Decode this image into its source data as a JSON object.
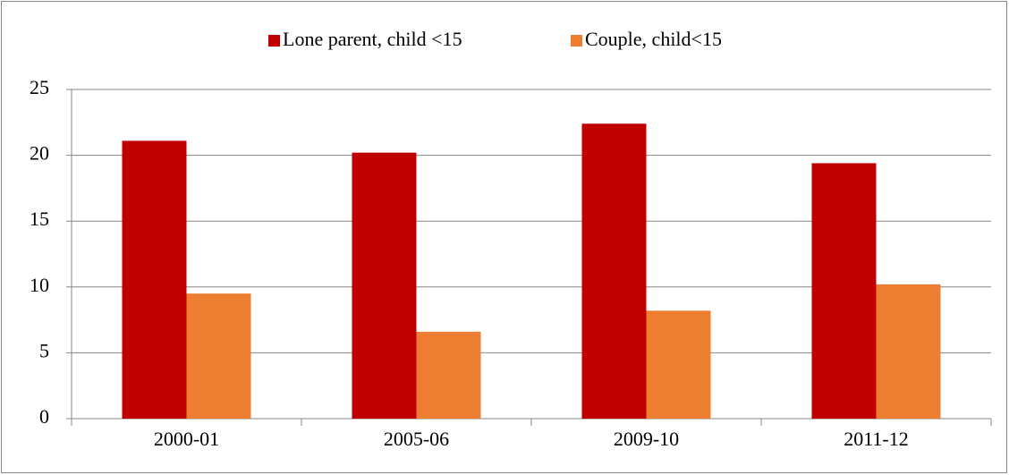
{
  "chart_data": {
    "type": "bar",
    "categories": [
      "2000-01",
      "2005-06",
      "2009-10",
      "2011-12"
    ],
    "series": [
      {
        "name": "Lone parent, child <15",
        "color": "#c00000",
        "values": [
          21.1,
          20.2,
          22.4,
          19.4
        ]
      },
      {
        "name": "Couple, child<15",
        "color": "#ed7d31",
        "values": [
          9.5,
          6.6,
          8.2,
          10.2
        ]
      }
    ],
    "ylim": [
      0,
      25
    ],
    "yticks": [
      0,
      5,
      10,
      15,
      20,
      25
    ],
    "grid": true,
    "legend": "top"
  }
}
